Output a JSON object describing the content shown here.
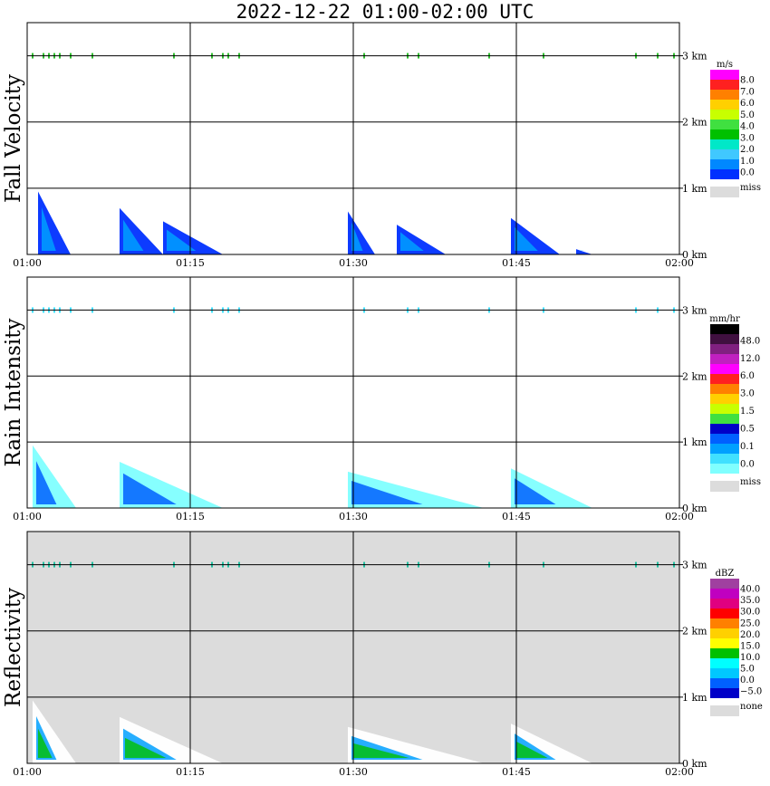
{
  "title": "2022-12-22   01:00-02:00 UTC",
  "chart_data": [
    {
      "type": "heatmap",
      "ylabel": "Fall Velocity",
      "x_ticks": [
        "01:00",
        "01:15",
        "01:30",
        "01:45",
        "02:00"
      ],
      "y_ticks": [
        "0 km",
        "1 km",
        "2 km",
        "3 km"
      ],
      "xlim": [
        "01:00",
        "02:00"
      ],
      "ylim_km": [
        0,
        3.5
      ],
      "background": "#ffffff",
      "colorbar": {
        "unit": "m/s",
        "levels": [
          "8.0",
          "7.0",
          "6.0",
          "5.0",
          "4.0",
          "3.0",
          "2.0",
          "1.0",
          "0.0"
        ],
        "colors": [
          "#ff00ff",
          "#ff2020",
          "#ff8000",
          "#ffd000",
          "#c8ff00",
          "#40e040",
          "#00c000",
          "#00e8c8",
          "#40c8ff",
          "#0088ff",
          "#0030ff"
        ],
        "miss_label": "miss",
        "miss_color": "#dcdcdc"
      },
      "echoes": [
        {
          "t0": 1,
          "t1": 4,
          "h0": 0.0,
          "h1": 0.95,
          "level": 0.5
        },
        {
          "t0": 8.5,
          "t1": 12.5,
          "h0": 0.0,
          "h1": 0.7,
          "level": 0.5
        },
        {
          "t0": 12.5,
          "t1": 18,
          "h0": 0.0,
          "h1": 0.5,
          "level": 0.5
        },
        {
          "t0": 29.5,
          "t1": 32,
          "h0": 0.0,
          "h1": 0.65,
          "level": 0.5
        },
        {
          "t0": 34,
          "t1": 38.5,
          "h0": 0.0,
          "h1": 0.45,
          "level": 0.5
        },
        {
          "t0": 44.5,
          "t1": 49,
          "h0": 0.0,
          "h1": 0.55,
          "level": 0.5
        },
        {
          "t0": 50.5,
          "t1": 52,
          "h0": 0.0,
          "h1": 0.08,
          "level": 0.5
        }
      ]
    },
    {
      "type": "heatmap",
      "ylabel": "Rain Intensity",
      "x_ticks": [
        "01:00",
        "01:15",
        "01:30",
        "01:45",
        "02:00"
      ],
      "y_ticks": [
        "0 km",
        "1 km",
        "2 km",
        "3 km"
      ],
      "xlim": [
        "01:00",
        "02:00"
      ],
      "ylim_km": [
        0,
        3.5
      ],
      "background": "#ffffff",
      "colorbar": {
        "unit": "mm/hr",
        "levels": [
          "48.0",
          "12.0",
          "6.0",
          "3.0",
          "1.5",
          "0.5",
          "0.1",
          "0.0"
        ],
        "colors": [
          "#000000",
          "#401040",
          "#802080",
          "#c020c0",
          "#ff00ff",
          "#ff2020",
          "#ff8000",
          "#ffd000",
          "#c8ff00",
          "#40e040",
          "#0000c8",
          "#0060ff",
          "#00a0ff",
          "#40e0ff",
          "#80ffff"
        ],
        "miss_label": "miss",
        "miss_color": "#dcdcdc"
      },
      "echoes": [
        {
          "t0": 0.5,
          "t1": 4.5,
          "h0": 0.0,
          "h1": 0.95,
          "level": 0.1
        },
        {
          "t0": 8.5,
          "t1": 18,
          "h0": 0.0,
          "h1": 0.7,
          "level": 0.1
        },
        {
          "t0": 29.5,
          "t1": 42,
          "h0": 0.0,
          "h1": 0.55,
          "level": 0.1
        },
        {
          "t0": 44.5,
          "t1": 52,
          "h0": 0.0,
          "h1": 0.6,
          "level": 0.1
        }
      ]
    },
    {
      "type": "heatmap",
      "ylabel": "Reflectivity",
      "x_ticks": [
        "01:00",
        "01:15",
        "01:30",
        "01:45",
        "02:00"
      ],
      "y_ticks": [
        "0 km",
        "1 km",
        "2 km",
        "3 km"
      ],
      "xlim": [
        "01:00",
        "02:00"
      ],
      "ylim_km": [
        0,
        3.5
      ],
      "background": "#dcdcdc",
      "colorbar": {
        "unit": "dBZ",
        "levels": [
          "40.0",
          "35.0",
          "30.0",
          "25.0",
          "20.0",
          "15.0",
          "10.0",
          "5.0",
          "0.0",
          "−5.0"
        ],
        "colors": [
          "#a040a0",
          "#c000c0",
          "#e00080",
          "#ff0000",
          "#ff8000",
          "#ffd000",
          "#ffff00",
          "#00c000",
          "#00ffff",
          "#00c8ff",
          "#0060ff",
          "#0000c8"
        ],
        "miss_label": "none",
        "miss_color": "#dcdcdc"
      },
      "echoes": [
        {
          "t0": 0.5,
          "t1": 4.5,
          "h0": 0.0,
          "h1": 0.95,
          "level": 5.0
        },
        {
          "t0": 8.5,
          "t1": 18,
          "h0": 0.0,
          "h1": 0.7,
          "level": 5.0
        },
        {
          "t0": 29.5,
          "t1": 42,
          "h0": 0.0,
          "h1": 0.55,
          "level": 5.0
        },
        {
          "t0": 44.5,
          "t1": 52,
          "h0": 0.0,
          "h1": 0.6,
          "level": 5.0
        }
      ]
    }
  ]
}
